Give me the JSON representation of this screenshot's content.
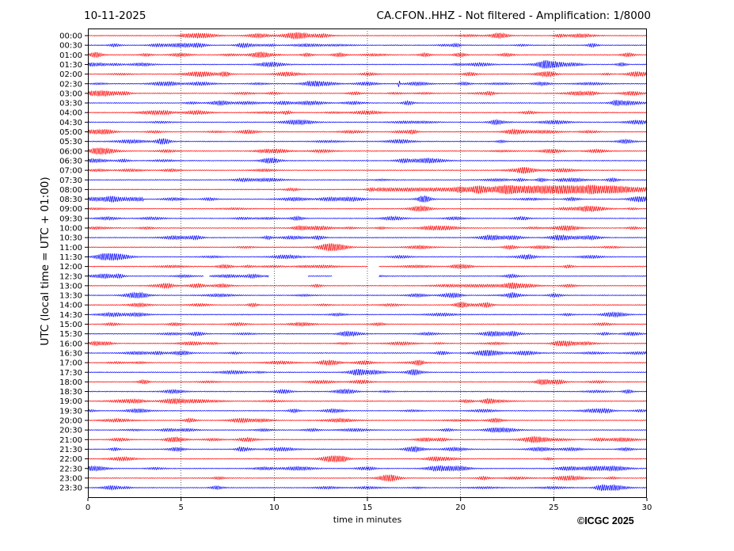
{
  "header": {
    "date": "10-11-2025",
    "title": "CA.CFON..HHZ - Not filtered - Amplification: 1/8000"
  },
  "footer": {
    "copyright": "©ICGC 2025"
  },
  "colors": {
    "trace_even": "#ff0000",
    "trace_odd": "#0000ff",
    "grid": "#000000",
    "frame": "#000000"
  },
  "chart_data": {
    "type": "line",
    "title": "CA.CFON..HHZ - Not filtered - Amplification: 1/8000",
    "xlabel": "time in minutes",
    "ylabel": "UTC (local time = UTC + 01:00)",
    "xlim": [
      0,
      30
    ],
    "xticks": [
      0,
      5,
      10,
      15,
      20,
      25,
      30
    ],
    "grid": "vertical dotted at every 5 minutes",
    "rows": [
      "00:00",
      "00:30",
      "01:00",
      "01:30",
      "02:00",
      "02:30",
      "03:00",
      "03:30",
      "04:00",
      "04:30",
      "05:00",
      "05:30",
      "06:00",
      "06:30",
      "07:00",
      "07:30",
      "08:00",
      "08:30",
      "09:00",
      "09:30",
      "10:00",
      "10:30",
      "11:00",
      "11:30",
      "12:00",
      "12:30",
      "13:00",
      "13:30",
      "14:00",
      "14:30",
      "15:00",
      "15:30",
      "16:00",
      "16:30",
      "17:00",
      "17:30",
      "18:00",
      "18:30",
      "19:00",
      "19:30",
      "20:00",
      "20:30",
      "21:00",
      "21:30",
      "22:00",
      "22:30",
      "23:00",
      "23:30"
    ],
    "trace_colors": "alternating red / blue per row",
    "events": [
      {
        "row": "08:00",
        "x_start": 15.5,
        "x_end": 30,
        "peak_at": 25.1,
        "description": "larger oscillation"
      },
      {
        "row": "08:30",
        "x_start": 0,
        "x_end": 3,
        "description": "moderate oscillation"
      },
      {
        "row": "02:30",
        "x": 16.7,
        "description": "spike"
      }
    ],
    "gaps": [
      {
        "row": "12:00",
        "x_start": 15.0,
        "x_end": 15.6
      },
      {
        "row": "12:30",
        "x_start": 6.2,
        "x_end": 6.5
      },
      {
        "row": "12:30",
        "x_start": 9.7,
        "x_end": 11.8
      },
      {
        "row": "12:30",
        "x_start": 13.1,
        "x_end": 15.0
      },
      {
        "row": "12:30",
        "x_start": 15.0,
        "x_end": 15.6
      }
    ]
  }
}
